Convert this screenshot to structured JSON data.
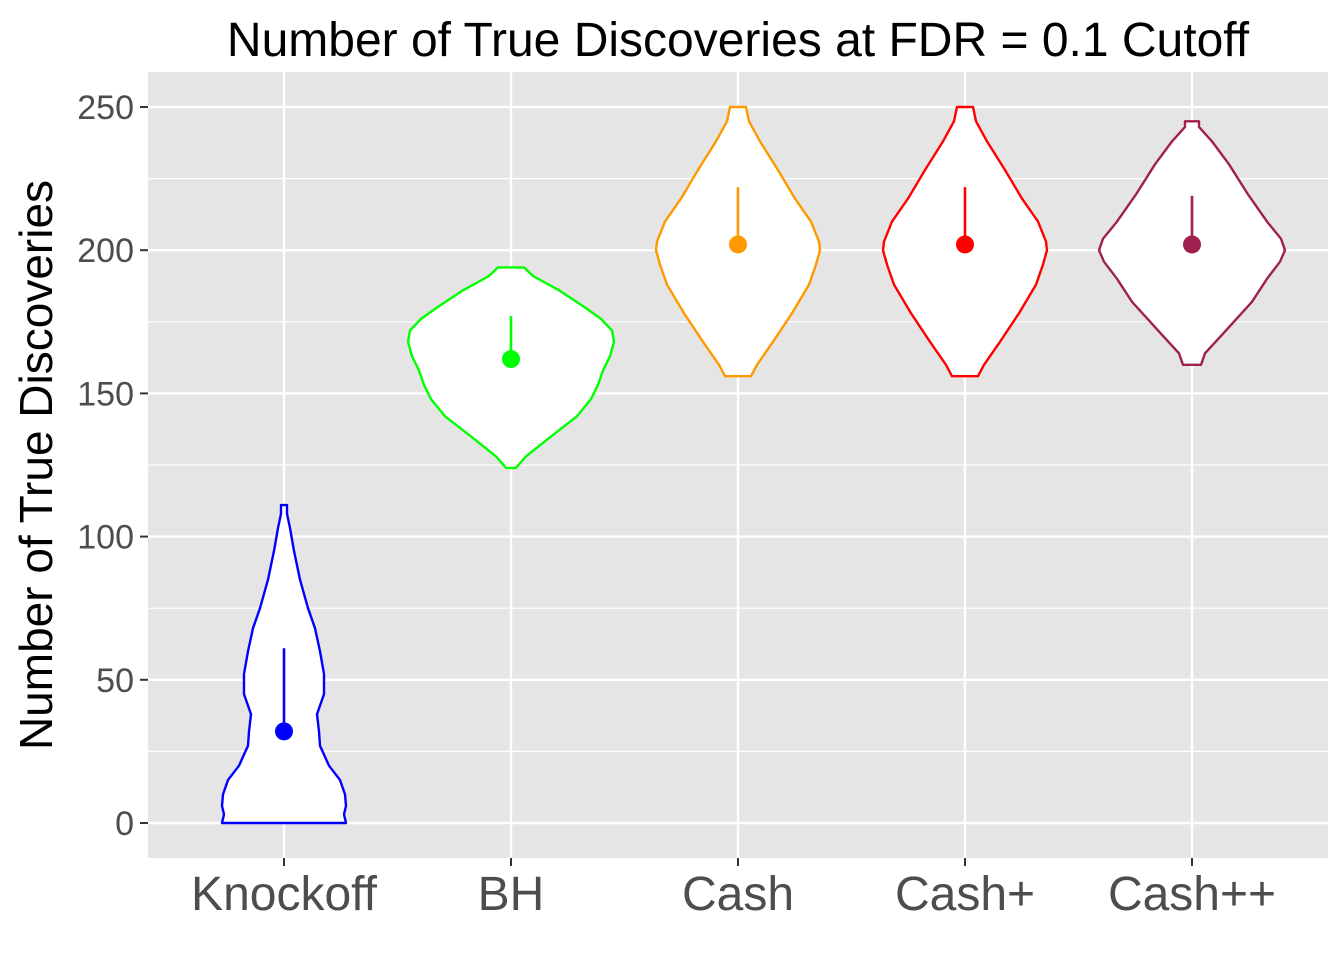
{
  "chart_data": {
    "type": "violin",
    "title": "Number of True Discoveries at FDR = 0.1 Cutoff",
    "xlabel": "",
    "ylabel": "Number of True Discoveries",
    "ylim": [
      -12,
      262
    ],
    "yticks": [
      0,
      50,
      100,
      150,
      200,
      250
    ],
    "ytick_labels": [
      "0",
      "50",
      "100",
      "150",
      "200",
      "250"
    ],
    "grid": true,
    "legend": "none",
    "categories": [
      "Knockoff",
      "BH",
      "Cash",
      "Cash+",
      "Cash++"
    ],
    "series": [
      {
        "color": "#0000ff",
        "point": 32,
        "line": [
          32,
          61
        ],
        "min": 0,
        "max": 111,
        "profile": [
          [
            0,
            62
          ],
          [
            3,
            60
          ],
          [
            6,
            62
          ],
          [
            10,
            61
          ],
          [
            15,
            56
          ],
          [
            20,
            45
          ],
          [
            27,
            36
          ],
          [
            32,
            35
          ],
          [
            38,
            33
          ],
          [
            45,
            40
          ],
          [
            52,
            40
          ],
          [
            60,
            36
          ],
          [
            68,
            31
          ],
          [
            75,
            24
          ],
          [
            85,
            16
          ],
          [
            95,
            10
          ],
          [
            103,
            6
          ],
          [
            108,
            3
          ],
          [
            111,
            3
          ]
        ]
      },
      {
        "color": "#00ff00",
        "point": 162,
        "line": [
          162,
          177
        ],
        "min": 124,
        "max": 194,
        "profile": [
          [
            124,
            5
          ],
          [
            128,
            15
          ],
          [
            135,
            40
          ],
          [
            142,
            66
          ],
          [
            148,
            80
          ],
          [
            153,
            87
          ],
          [
            158,
            92
          ],
          [
            163,
            99
          ],
          [
            168,
            103
          ],
          [
            172,
            101
          ],
          [
            176,
            90
          ],
          [
            180,
            74
          ],
          [
            186,
            48
          ],
          [
            191,
            22
          ],
          [
            194,
            13
          ]
        ]
      },
      {
        "color": "#ff9900",
        "point": 202,
        "line": [
          202,
          222
        ],
        "min": 156,
        "max": 250,
        "profile": [
          [
            156,
            13
          ],
          [
            160,
            19
          ],
          [
            168,
            35
          ],
          [
            178,
            54
          ],
          [
            188,
            71
          ],
          [
            195,
            78
          ],
          [
            200,
            82
          ],
          [
            203,
            81
          ],
          [
            210,
            73
          ],
          [
            218,
            57
          ],
          [
            228,
            40
          ],
          [
            238,
            22
          ],
          [
            245,
            11
          ],
          [
            250,
            8
          ]
        ]
      },
      {
        "color": "#ff0000",
        "point": 202,
        "line": [
          202,
          222
        ],
        "min": 156,
        "max": 250,
        "profile": [
          [
            156,
            13
          ],
          [
            160,
            19
          ],
          [
            168,
            35
          ],
          [
            178,
            54
          ],
          [
            188,
            71
          ],
          [
            195,
            78
          ],
          [
            200,
            82
          ],
          [
            203,
            81
          ],
          [
            210,
            73
          ],
          [
            218,
            57
          ],
          [
            228,
            40
          ],
          [
            238,
            22
          ],
          [
            245,
            11
          ],
          [
            250,
            8
          ]
        ]
      },
      {
        "color": "#a0204f",
        "point": 202,
        "line": [
          202,
          219
        ],
        "min": 160,
        "max": 245,
        "profile": [
          [
            160,
            9
          ],
          [
            164,
            13
          ],
          [
            172,
            34
          ],
          [
            182,
            60
          ],
          [
            190,
            75
          ],
          [
            196,
            88
          ],
          [
            200,
            93
          ],
          [
            204,
            89
          ],
          [
            210,
            75
          ],
          [
            220,
            55
          ],
          [
            230,
            37
          ],
          [
            238,
            20
          ],
          [
            243,
            7
          ],
          [
            245,
            7
          ]
        ]
      }
    ]
  }
}
